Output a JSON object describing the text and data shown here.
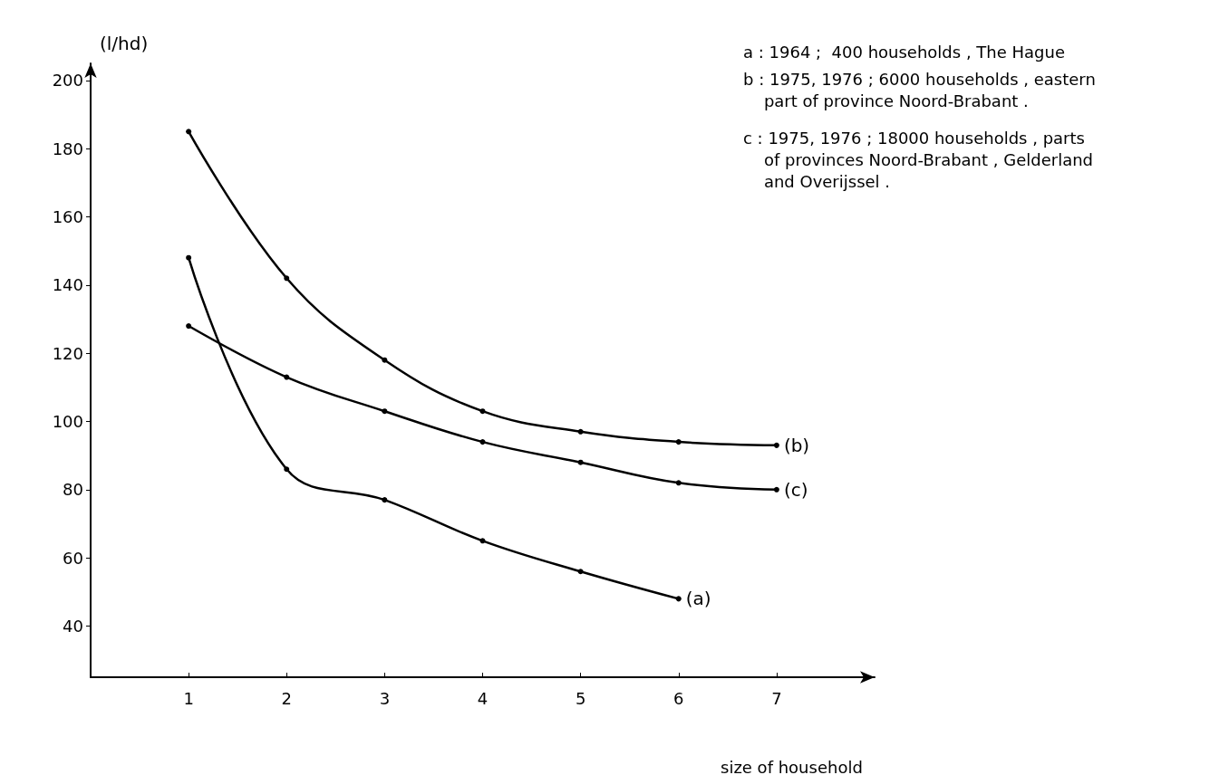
{
  "chart_data": {
    "type": "line",
    "xlabel": "size of household",
    "ylabel": "(l/hd)",
    "x": [
      1,
      2,
      3,
      4,
      5,
      6,
      7
    ],
    "series": [
      {
        "name": "(a)",
        "color": "#000000",
        "x": [
          1,
          2,
          3,
          4,
          5,
          6
        ],
        "values": [
          148,
          86,
          77,
          65,
          56,
          48
        ]
      },
      {
        "name": "(b)",
        "color": "#000000",
        "values": [
          185,
          142,
          118,
          103,
          97,
          94,
          93
        ]
      },
      {
        "name": "(c)",
        "color": "#000000",
        "values": [
          128,
          113,
          103,
          94,
          88,
          82,
          80
        ]
      }
    ],
    "xlim": [
      0,
      8
    ],
    "xticks": [
      1,
      2,
      3,
      4,
      5,
      6,
      7
    ],
    "ylim": [
      25,
      205
    ],
    "yticks": [
      40,
      60,
      80,
      100,
      120,
      140,
      160,
      180,
      200
    ],
    "marker": "circle",
    "line_style": "solid",
    "grid": false,
    "legend": false,
    "annotations": [
      "a : 1964 ;  400 households , The Hague",
      "b : 1975, 1976 ; 6000 households , eastern\n    part of province Noord-Brabant .",
      "c : 1975, 1976 ; 18000 households , parts\n    of provinces Noord-Brabant , Gelderland\n    and Overijssel ."
    ]
  }
}
